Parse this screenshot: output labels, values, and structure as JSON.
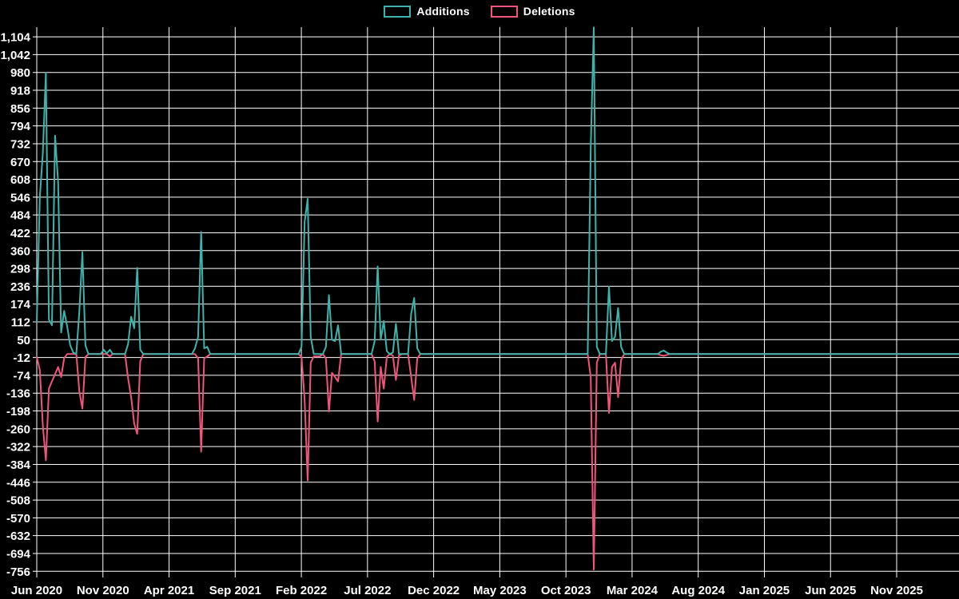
{
  "chart_data": {
    "type": "line",
    "title": "",
    "description": "Weekly code additions and deletions frequency chart on black background",
    "legend_position": "top-center",
    "grid": true,
    "background_color": "#000000",
    "gridline_color": "#ffffff",
    "text_color": "#ffffff",
    "x_unit": "week",
    "weeks_total": 304,
    "x_tick_labels": [
      "Jun 2020",
      "Nov 2020",
      "Apr 2021",
      "Sep 2021",
      "Feb 2022",
      "Jul 2022",
      "Dec 2022",
      "May 2023",
      "Oct 2023",
      "Mar 2024",
      "Aug 2024",
      "Jan 2025",
      "Jun 2025",
      "Nov 2025"
    ],
    "y_tick_labels": [
      "1,104",
      "1,042",
      "980",
      "918",
      "856",
      "794",
      "732",
      "670",
      "608",
      "546",
      "484",
      "422",
      "360",
      "298",
      "236",
      "174",
      "112",
      "50",
      "-12",
      "-74",
      "-136",
      "-198",
      "-260",
      "-322",
      "-384",
      "-446",
      "-508",
      "-570",
      "-632",
      "-694",
      "-756"
    ],
    "y_min": -756,
    "y_max": 1104,
    "y_step": 62,
    "series": [
      {
        "name": "Additions",
        "color": "#3cb4ac",
        "baseline": 0,
        "sparse_points": {
          "0": 110,
          "1": 545,
          "2": 700,
          "3": 980,
          "4": 120,
          "5": 100,
          "6": 760,
          "7": 600,
          "8": 75,
          "9": 150,
          "10": 95,
          "11": 30,
          "12": 5,
          "14": 150,
          "15": 355,
          "16": 30,
          "22": 15,
          "23": 2,
          "24": 15,
          "30": 35,
          "31": 130,
          "32": 90,
          "33": 300,
          "34": 15,
          "52": 20,
          "53": 60,
          "54": 425,
          "55": 20,
          "56": 25,
          "87": 25,
          "88": 460,
          "89": 540,
          "90": 60,
          "95": 25,
          "96": 205,
          "97": 50,
          "98": 45,
          "99": 100,
          "111": 45,
          "112": 305,
          "113": 50,
          "114": 115,
          "115": 10,
          "117": 5,
          "118": 105,
          "123": 140,
          "124": 195,
          "125": 20,
          "182": 720,
          "183": 1137,
          "184": 25,
          "188": 235,
          "189": 45,
          "190": 60,
          "191": 160,
          "192": 25,
          "205": 8,
          "206": 12,
          "207": 5
        }
      },
      {
        "name": "Deletions",
        "color": "#f1557c",
        "baseline": 0,
        "sparse_points": {
          "0": -10,
          "1": -55,
          "2": -250,
          "3": -370,
          "4": -120,
          "5": -95,
          "6": -70,
          "7": -45,
          "8": -80,
          "9": -14,
          "14": -130,
          "15": -190,
          "16": -10,
          "24": -8,
          "30": -85,
          "31": -150,
          "32": -242,
          "33": -278,
          "34": -25,
          "53": -15,
          "54": -340,
          "55": -15,
          "56": -8,
          "87": -10,
          "88": -160,
          "89": -440,
          "90": -30,
          "91": -8,
          "92": -8,
          "93": -8,
          "95": -15,
          "96": -200,
          "97": -65,
          "98": -80,
          "99": -95,
          "111": -25,
          "112": -235,
          "113": -45,
          "114": -120,
          "115": -10,
          "117": -5,
          "118": -90,
          "119": -5,
          "123": -80,
          "124": -160,
          "125": -15,
          "182": -80,
          "183": -750,
          "184": -30,
          "188": -205,
          "189": -45,
          "190": -30,
          "191": -150,
          "192": -20,
          "205": -4,
          "206": -6,
          "207": -3
        }
      }
    ]
  }
}
